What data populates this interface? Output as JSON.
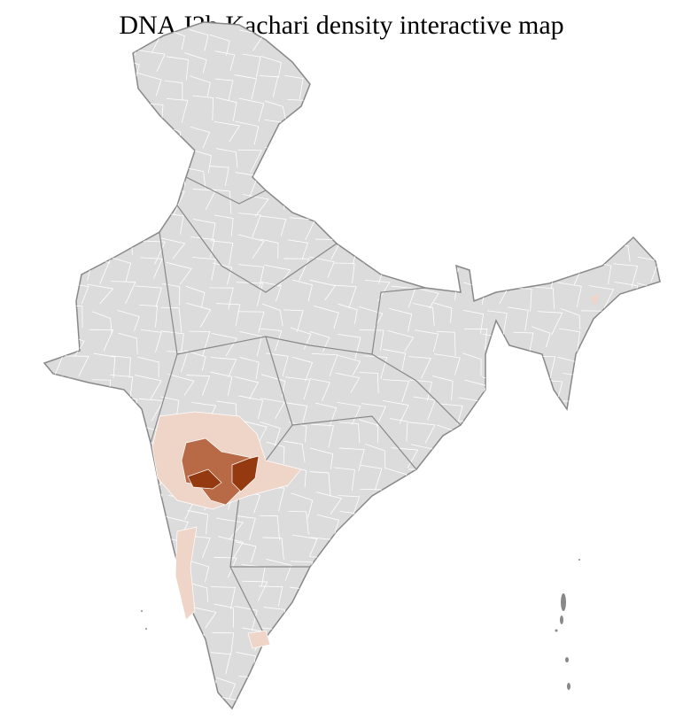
{
  "title": "DNA J2b Kachari density interactive map",
  "map": {
    "region": "India districts",
    "colors": {
      "no_data": "#dcdcdc",
      "low": "#eed5c8",
      "medium": "#b86a47",
      "high": "#953a10",
      "district_border": "#ffffff",
      "state_border": "#888888"
    }
  }
}
